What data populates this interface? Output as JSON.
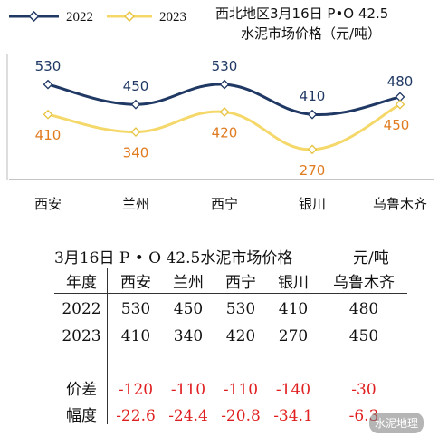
{
  "chart_data": {
    "type": "line",
    "title": [
      "西北地区3月16日 P•O 42.5",
      "水泥市场价格（元/吨）"
    ],
    "categories": [
      "西安",
      "兰州",
      "西宁",
      "银川",
      "乌鲁木齐"
    ],
    "series": [
      {
        "name": "2022",
        "values": [
          530,
          450,
          530,
          410,
          480
        ],
        "color": "#1f3864"
      },
      {
        "name": "2023",
        "values": [
          410,
          340,
          420,
          270,
          450
        ],
        "color": "#f5d86a"
      }
    ],
    "label_colors": {
      "2022": "#1f3864",
      "2023": "#e07b1f"
    },
    "ylim": [
      150,
      650
    ],
    "legend": "top-left",
    "grid": false
  },
  "table": {
    "title": "3月16日 P • O 42.5水泥市场价格",
    "unit": "元/吨",
    "header": [
      "年度",
      "西安",
      "兰州",
      "西宁",
      "银川",
      "乌鲁木齐"
    ],
    "rows": [
      [
        "2022",
        "530",
        "450",
        "530",
        "410",
        "480"
      ],
      [
        "2023",
        "410",
        "340",
        "420",
        "270",
        "450"
      ],
      [
        "价差",
        "-120",
        "-110",
        "-110",
        "-140",
        "-30"
      ],
      [
        "幅度",
        "-22.6",
        "-24.4",
        "-20.8",
        "-34.1",
        "-6.3"
      ]
    ],
    "red_rows": [
      2,
      3
    ]
  },
  "watermark": "水泥地理"
}
